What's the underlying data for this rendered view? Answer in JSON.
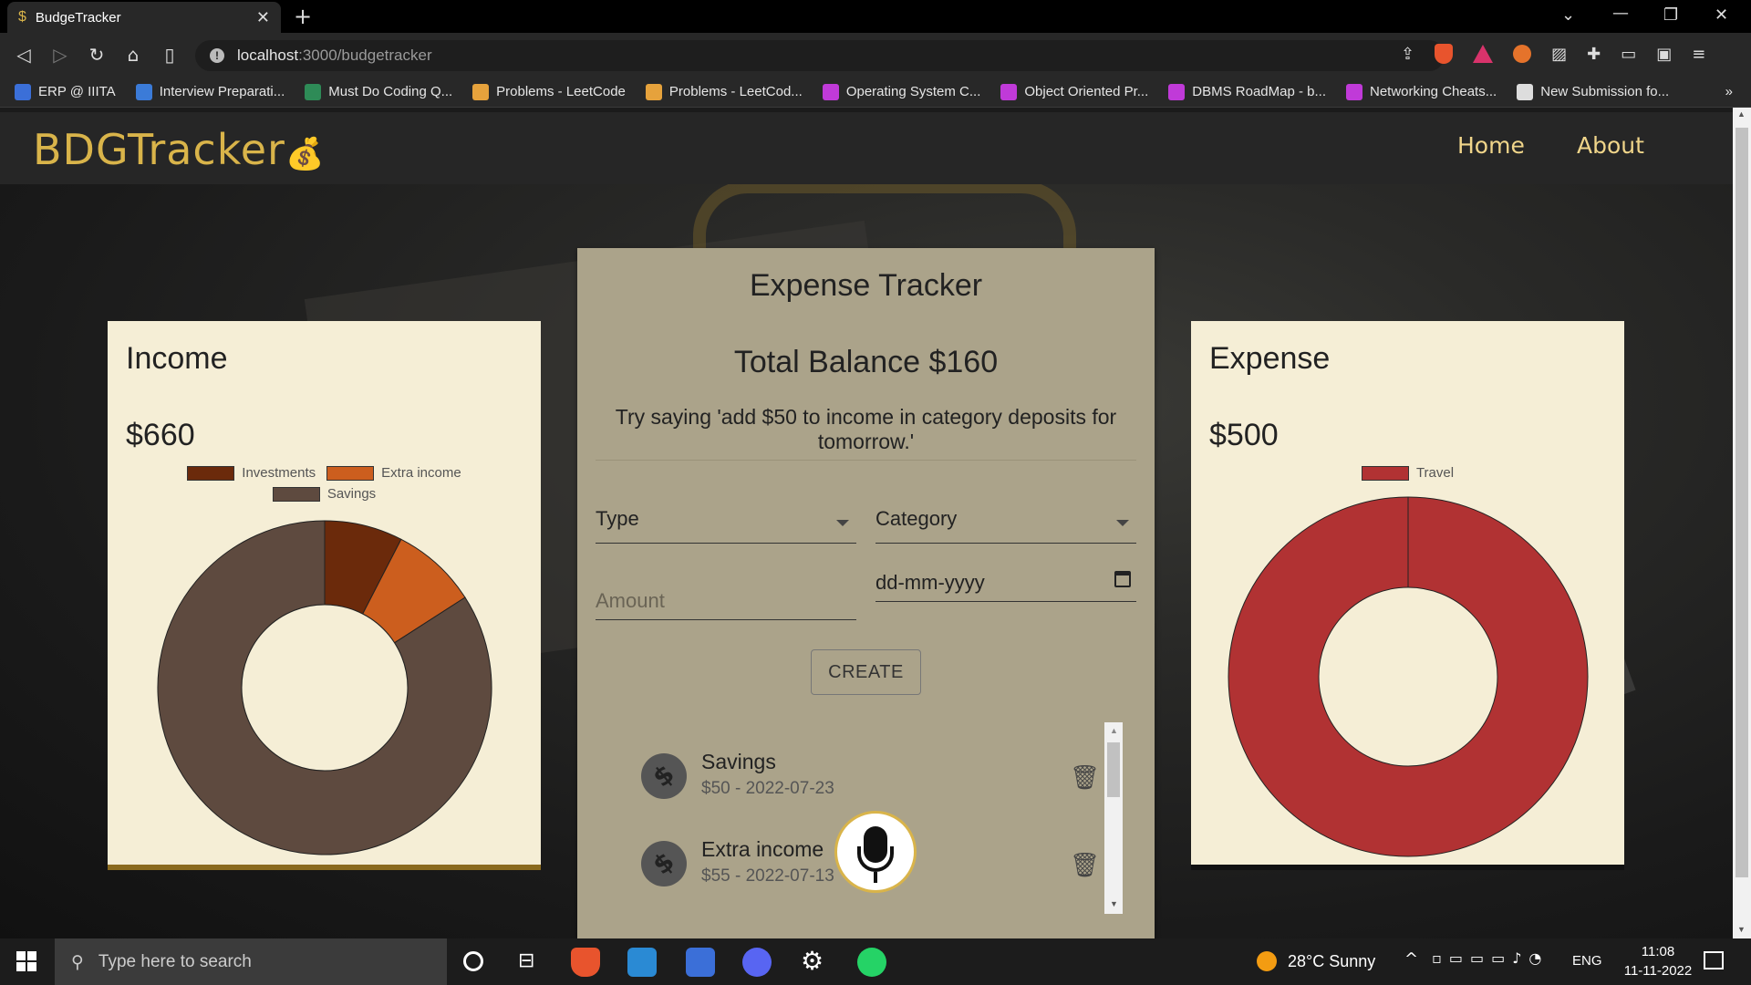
{
  "browser": {
    "tab_title": "BudgeTracker",
    "url_host": "localhost",
    "url_path": ":3000/budgetracker",
    "bookmarks": [
      {
        "label": "ERP @ IIITA",
        "color": "#3b6fd8"
      },
      {
        "label": "Interview Preparati...",
        "color": "#3b7bd8"
      },
      {
        "label": "Must Do Coding Q...",
        "color": "#2e8b57"
      },
      {
        "label": "Problems - LeetCode",
        "color": "#e6a23c"
      },
      {
        "label": "Problems - LeetCod...",
        "color": "#e6a23c"
      },
      {
        "label": "Operating System C...",
        "color": "#c03ad8"
      },
      {
        "label": "Object Oriented Pr...",
        "color": "#c03ad8"
      },
      {
        "label": "DBMS RoadMap - b...",
        "color": "#c03ad8"
      },
      {
        "label": "Networking Cheats...",
        "color": "#c03ad8"
      },
      {
        "label": "New Submission fo...",
        "color": "#dddddd"
      }
    ]
  },
  "app": {
    "logo": "BDGTracker",
    "nav": {
      "home": "Home",
      "about": "About"
    }
  },
  "income": {
    "title": "Income",
    "amount": "$660",
    "legend": [
      {
        "label": "Investments",
        "color": "#6b2a0b"
      },
      {
        "label": "Extra income",
        "color": "#cc5e1e"
      },
      {
        "label": "Savings",
        "color": "#5e4a3f"
      }
    ]
  },
  "expense": {
    "title": "Expense",
    "amount": "$500",
    "legend": [
      {
        "label": "Travel",
        "color": "#b13233"
      }
    ]
  },
  "chart_data": [
    {
      "type": "pie",
      "title": "",
      "categories": [
        "Investments",
        "Extra income",
        "Savings"
      ],
      "values": [
        50,
        55,
        555
      ],
      "colors": [
        "#6b2a0b",
        "#cc5e1e",
        "#5e4a3f"
      ],
      "legend": "top"
    },
    {
      "type": "pie",
      "title": "",
      "categories": [
        "Travel"
      ],
      "values": [
        500
      ],
      "colors": [
        "#b13233"
      ],
      "legend": "top"
    }
  ],
  "tracker": {
    "title": "Expense Tracker",
    "balance": "Total Balance $160",
    "hint": "Try saying 'add $50 to income in category deposits for tomorrow.'",
    "type_label": "Type",
    "category_label": "Category",
    "amount_placeholder": "Amount",
    "date_placeholder": "dd-mm-yyyy",
    "create_label": "CREATE",
    "items": [
      {
        "name": "Savings",
        "detail": "$50 - 2022-07-23"
      },
      {
        "name": "Extra income",
        "detail": "$55 - 2022-07-13"
      }
    ]
  },
  "taskbar": {
    "search_placeholder": "Type here to search",
    "weather": "28°C  Sunny",
    "lang": "ENG",
    "time": "11:08",
    "date": "11-11-2022"
  }
}
